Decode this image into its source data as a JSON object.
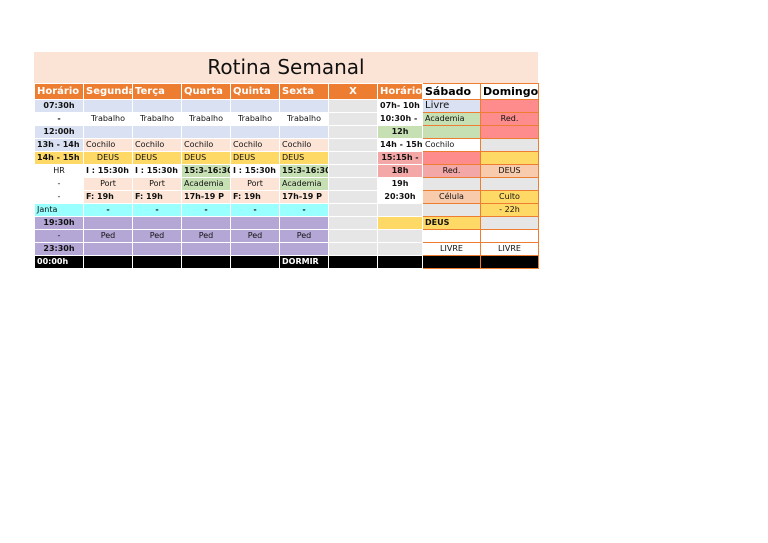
{
  "title": "Rotina Semanal",
  "header": [
    "Horário",
    "Segunda",
    "Terça",
    "Quarta",
    "Quinta",
    "Sexta",
    "X",
    "Horário",
    "Sábado",
    "Domingo"
  ],
  "rows": [
    [
      "07:30h",
      "",
      "",
      "",
      "",
      "",
      "",
      "07h- 10h",
      "Livre",
      ""
    ],
    [
      "-",
      "Trabalho",
      "Trabalho",
      "Trabalho",
      "Trabalho",
      "Trabalho",
      "",
      "10:30h -",
      "Academia",
      "Red."
    ],
    [
      "12:00h",
      "",
      "",
      "",
      "",
      "",
      "",
      "12h",
      "",
      ""
    ],
    [
      "13h - 14h",
      "Cochilo",
      "Cochilo",
      "Cochilo",
      "Cochilo",
      "Cochilo",
      "",
      "14h - 15h",
      "Cochilo",
      ""
    ],
    [
      "14h - 15h",
      "DEUS",
      "DEUS",
      "DEUS",
      "DEUS",
      "DEUS",
      "",
      "15:15h -",
      "",
      ""
    ],
    [
      "HR",
      "I : 15:30h",
      "I : 15:30h",
      "15:3-16:30",
      "I : 15:30h",
      "15:3-16:30",
      "",
      "18h",
      "Red.",
      "DEUS"
    ],
    [
      "-",
      "Port",
      "Port",
      "Academia",
      "Port",
      "Academia",
      "",
      "19h",
      "",
      ""
    ],
    [
      "-",
      "F: 19h",
      "F: 19h",
      "17h-19 P",
      "F: 19h",
      "17h-19 P",
      "",
      "20:30h",
      "Célula",
      "Culto"
    ],
    [
      "Janta",
      "-",
      "-",
      "-",
      "-",
      "-",
      "",
      "",
      "",
      "- 22h"
    ],
    [
      "19:30h",
      "",
      "",
      "",
      "",
      "",
      "",
      "",
      "DEUS",
      ""
    ],
    [
      "-",
      "Ped",
      "Ped",
      "Ped",
      "Ped",
      "Ped",
      "",
      "",
      "",
      ""
    ],
    [
      "23:30h",
      "",
      "",
      "",
      "",
      "",
      "",
      "",
      "LIVRE",
      "LIVRE"
    ],
    [
      "00:00h",
      "",
      "",
      "",
      "",
      "DORMIR",
      "",
      "",
      "",
      ""
    ]
  ],
  "colors": {
    "header": "#ed7d31",
    "title_bg": "#fbe3d6",
    "time_blue": "#d9e1f2",
    "deus_yellow": "#ffd966",
    "academia_green": "#c6e0b4",
    "janta_cyan": "#99ffff",
    "night_purple": "#b4a7d6",
    "red": "#ff8c8c"
  }
}
